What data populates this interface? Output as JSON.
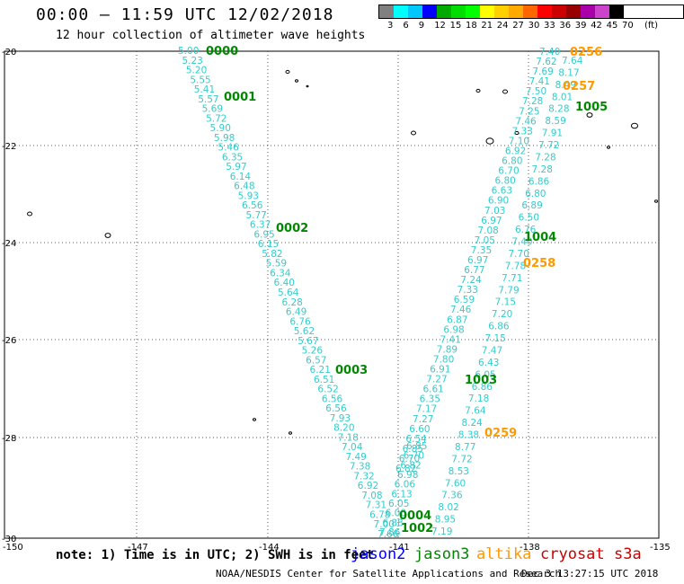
{
  "header": {
    "title": "00:00 – 11:59 UTC 12/02/2018",
    "subtitle": "12 hour collection of altimeter wave heights"
  },
  "colorbar": {
    "unit": "(ft)",
    "colors": [
      "#808080",
      "#00ffff",
      "#00c8ff",
      "#0000ff",
      "#00aa00",
      "#00dd00",
      "#00ff00",
      "#ffff00",
      "#ffd000",
      "#ffaa00",
      "#ff6600",
      "#ff0000",
      "#cc0000",
      "#990000",
      "#aa00aa",
      "#cc44cc",
      "#000000"
    ],
    "ticks": [
      "3",
      "6",
      "9",
      "12",
      "15",
      "18",
      "21",
      "24",
      "27",
      "30",
      "33",
      "36",
      "39",
      "42",
      "45",
      "70"
    ]
  },
  "axes": {
    "lon_ticks": [
      "-150",
      "-147",
      "-144",
      "-141",
      "-138",
      "-135"
    ],
    "lat_ticks": [
      "-20",
      "-22",
      "-24",
      "-26",
      "-28",
      "-30"
    ]
  },
  "colors": {
    "jason2": "#0000ff",
    "jason3": "#008800",
    "altika": "#ff9900",
    "cryosat": "#cc0000",
    "s3a": "#cc0000",
    "track": "#33cccc"
  },
  "track_left": {
    "values": [
      "5.00",
      "5.23",
      "5.20",
      "5.55",
      "5.41",
      "5.57",
      "5.69",
      "5.72",
      "5.90",
      "5.98",
      "5.46",
      "6.35",
      "5.97",
      "6.14",
      "6.48",
      "5.93",
      "6.56",
      "5.77",
      "6.37",
      "6.95",
      "6.15",
      "5.82",
      "5.59",
      "6.34",
      "6.40",
      "5.64",
      "6.28",
      "6.49",
      "6.76",
      "5.62",
      "5.67",
      "5.26",
      "6.57",
      "6.21",
      "6.51",
      "6.52",
      "6.56",
      "6.56",
      "7.93",
      "8.20",
      "7.18",
      "7.04",
      "7.49",
      "7.38",
      "7.32",
      "6.92",
      "7.08",
      "7.31",
      "6.78",
      "7.00",
      "7.66"
    ]
  },
  "track_inner": {
    "values": [
      "6.85",
      "6.70",
      "6.82",
      "6.98",
      "6.06",
      "6.13",
      "6.05",
      "6.00",
      "6.88",
      "7.86"
    ]
  },
  "track_right": {
    "values": [
      "7.40",
      "7.62",
      "7.69",
      "7.41",
      "7.50",
      "7.28",
      "7.25",
      "7.46",
      "7.33",
      "7.10",
      "6.92",
      "6.80",
      "6.70",
      "6.80",
      "6.63",
      "6.90",
      "7.03",
      "6.97",
      "7.08",
      "7.05",
      "7.35",
      "6.97",
      "6.77",
      "7.24",
      "7.33",
      "6.59",
      "7.46",
      "6.87",
      "6.98",
      "7.41",
      "7.89",
      "7.80",
      "6.91",
      "7.27",
      "6.61",
      "6.35",
      "7.17",
      "7.27",
      "6.60",
      "6.54",
      "6.85",
      "6.70",
      "6.82"
    ]
  },
  "track_right2": {
    "values": [
      "7.64",
      "8.17",
      "8.49",
      "8.01",
      "8.28",
      "8.59",
      "7.91",
      "7.72",
      "7.28",
      "7.28",
      "6.86",
      "6.80",
      "6.89",
      "6.50",
      "6.76",
      "7.40",
      "7.70",
      "7.78",
      "7.71",
      "7.79",
      "7.15",
      "7.20",
      "6.86",
      "7.15",
      "7.47",
      "6.43",
      "6.05",
      "6.86",
      "7.18",
      "7.64",
      "8.24",
      "8.38",
      "8.77",
      "7.72",
      "8.53",
      "7.60",
      "7.36",
      "8.02",
      "8.95",
      "7.19"
    ]
  },
  "time_labels": [
    {
      "text": "0000",
      "sat": "jason3"
    },
    {
      "text": "0001",
      "sat": "jason3"
    },
    {
      "text": "0002",
      "sat": "jason3"
    },
    {
      "text": "0003",
      "sat": "jason3"
    },
    {
      "text": "0004",
      "sat": "jason3"
    },
    {
      "text": "1002",
      "sat": "jason3"
    },
    {
      "text": "1003",
      "sat": "jason3"
    },
    {
      "text": "1004",
      "sat": "jason3"
    },
    {
      "text": "1005",
      "sat": "jason3"
    },
    {
      "text": "0256",
      "sat": "altika"
    },
    {
      "text": "0257",
      "sat": "altika"
    },
    {
      "text": "0258",
      "sat": "altika"
    },
    {
      "text": "0259",
      "sat": "altika"
    }
  ],
  "note": "note: 1) Time is in UTC; 2) SWH is in feet",
  "legend": {
    "jason2": "jason2",
    "jason3": "jason3",
    "altika": "altika",
    "cryosat": "cryosat",
    "s3a": "s3a"
  },
  "footer": {
    "credit": "NOAA/NESDIS Center for Satellite Applications and Research",
    "timestamp": "Dec  3 13:27:15 UTC 2018"
  }
}
